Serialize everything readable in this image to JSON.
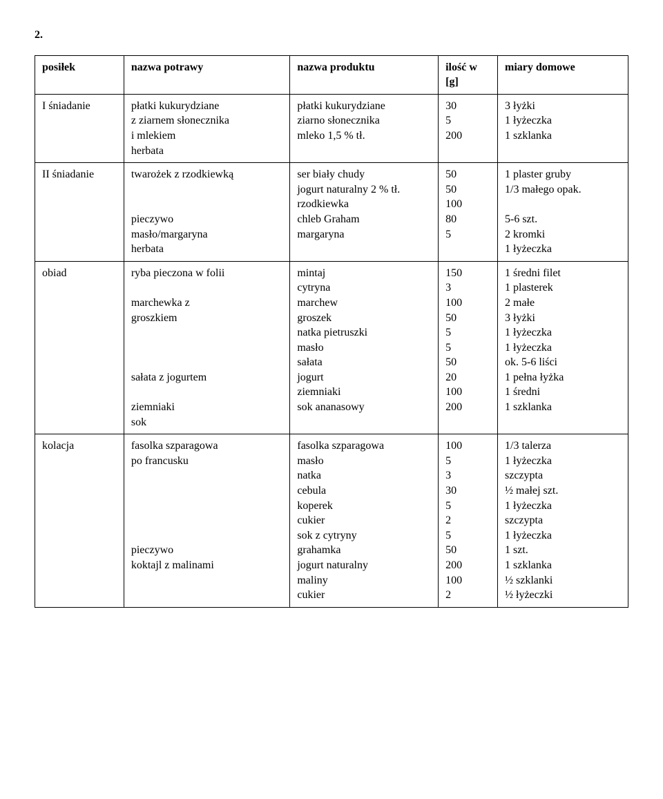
{
  "section_number": "2.",
  "table": {
    "columns": [
      "posiłek",
      "nazwa potrawy",
      "nazwa produktu",
      "ilość w [g]",
      "miary domowe"
    ],
    "rows": [
      {
        "meal": "I śniadanie",
        "dish": [
          "płatki kukurydziane",
          "z ziarnem słonecznika",
          "i mlekiem",
          "herbata"
        ],
        "product": [
          "płatki kukurydziane",
          "ziarno słonecznika",
          "mleko 1,5 % tł."
        ],
        "qty": [
          "30",
          "5",
          "200"
        ],
        "measure": [
          "3 łyżki",
          "1 łyżeczka",
          "1 szklanka"
        ]
      },
      {
        "meal": "II śniadanie",
        "dish": [
          "twarożek z rzodkiewką",
          "",
          "",
          "pieczywo",
          "masło/margaryna",
          "herbata"
        ],
        "product": [
          "ser biały chudy",
          "jogurt naturalny 2 % tł.",
          "rzodkiewka",
          "chleb Graham",
          "margaryna"
        ],
        "qty": [
          "50",
          "50",
          "100",
          "80",
          "5"
        ],
        "measure": [
          "1 plaster gruby",
          "1/3 małego opak.",
          "",
          "5-6 szt.",
          "2 kromki",
          "1 łyżeczka"
        ]
      },
      {
        "meal": "obiad",
        "dish": [
          "ryba pieczona w folii",
          "",
          "marchewka z",
          "groszkiem",
          "",
          "",
          "",
          "sałata z jogurtem",
          "",
          "ziemniaki",
          "sok"
        ],
        "product": [
          "mintaj",
          "cytryna",
          "marchew",
          "groszek",
          "natka pietruszki",
          "masło",
          "sałata",
          "jogurt",
          "ziemniaki",
          "sok ananasowy"
        ],
        "qty": [
          "150",
          "3",
          "100",
          "50",
          "5",
          "5",
          "50",
          "20",
          "100",
          "200"
        ],
        "measure": [
          "1 średni filet",
          "1 plasterek",
          "2 małe",
          "3 łyżki",
          "1 łyżeczka",
          "1 łyżeczka",
          "ok. 5-6 liści",
          "1 pełna łyżka",
          "1 średni",
          "1 szklanka"
        ]
      },
      {
        "meal": "kolacja",
        "dish": [
          "fasolka szparagowa",
          "po francusku",
          "",
          "",
          "",
          "",
          "",
          "pieczywo",
          "koktajl z malinami"
        ],
        "product": [
          "fasolka szparagowa",
          "masło",
          "natka",
          "cebula",
          "koperek",
          "cukier",
          "sok z cytryny",
          "grahamka",
          "jogurt naturalny",
          "maliny",
          "cukier"
        ],
        "qty": [
          "100",
          "5",
          "3",
          "30",
          "5",
          "2",
          "5",
          "50",
          "200",
          "100",
          "2"
        ],
        "measure": [
          "1/3 talerza",
          "1 łyżeczka",
          "szczypta",
          "½ małej szt.",
          "1 łyżeczka",
          "szczypta",
          "1 łyżeczka",
          "1 szt.",
          "1 szklanka",
          "½ szklanki",
          "½ łyżeczki"
        ]
      }
    ],
    "style": {
      "font_family": "Times New Roman",
      "font_size_pt": 12,
      "border_color": "#000000",
      "background_color": "#ffffff",
      "col_widths_pct": [
        15,
        28,
        25,
        10,
        22
      ]
    }
  }
}
